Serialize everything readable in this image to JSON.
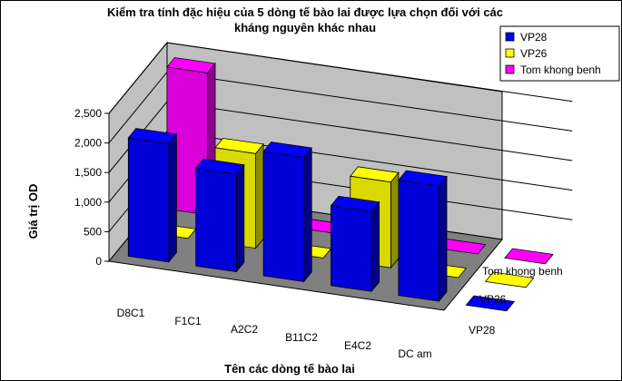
{
  "chart_data": {
    "type": "bar",
    "subtype": "3d-column",
    "title": "Kiểm tra tính đặc hiệu của 5 dòng tế bào lai được lựa chọn đối với các kháng nguyên khác nhau",
    "title_lines": [
      "Kiểm tra tính đặc hiệu của 5 dòng tế bào lai được lựa chọn đối với các",
      "kháng nguyên khác nhau"
    ],
    "xlabel": "Tên các dòng tế bào lai",
    "ylabel": "Giá trị OD",
    "categories": [
      "D8C1",
      "F1C1",
      "A2C2",
      "B11C2",
      "E4C2",
      "DC am"
    ],
    "series_axis_labels": [
      "Tom khong benh",
      "VP26",
      "VP28"
    ],
    "yticks": [
      "0",
      "500",
      "1,000",
      "1,500",
      "2,000",
      "2,500"
    ],
    "ylim": [
      0,
      2500
    ],
    "gridlines": true,
    "legend_position": "top-right",
    "series": [
      {
        "name": "VP28",
        "color": "#0000FF",
        "values": [
          2000,
          1650,
          2100,
          1350,
          1950,
          20
        ]
      },
      {
        "name": "VP26",
        "color": "#FFFF00",
        "values": [
          20,
          1600,
          20,
          1450,
          20,
          20
        ]
      },
      {
        "name": "Tom khong benh",
        "color": "#FF00FF",
        "values": [
          2400,
          20,
          20,
          20,
          20,
          20
        ]
      }
    ]
  }
}
